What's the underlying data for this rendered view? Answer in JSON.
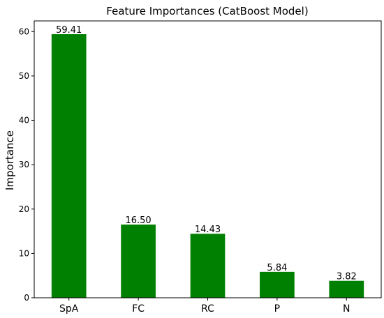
{
  "chart_data": {
    "type": "bar",
    "title": "Feature Importances (CatBoost Model)",
    "xlabel": "",
    "ylabel": "Importance",
    "categories": [
      "SpA",
      "FC",
      "RC",
      "P",
      "N"
    ],
    "values": [
      59.41,
      16.5,
      14.43,
      5.84,
      3.82
    ],
    "data_labels": [
      "59.41",
      "16.50",
      "14.43",
      "5.84",
      "3.82"
    ],
    "yticks": [
      0,
      10,
      20,
      30,
      40,
      50,
      60
    ],
    "ylim": [
      0,
      62.4
    ],
    "grid": false,
    "bar_color": "#008000"
  }
}
